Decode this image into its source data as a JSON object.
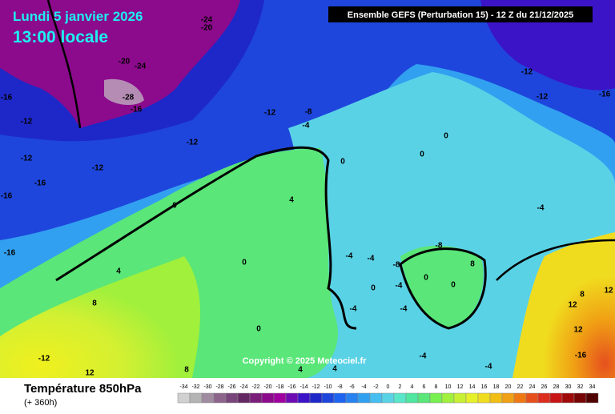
{
  "header": {
    "date": "Lundi 5 janvier 2026",
    "time": "13:00 locale",
    "run": "Ensemble GEFS  (Perturbation 15)  -  12 Z du 21/12/2025"
  },
  "map": {
    "copyright": "Copyright © 2025 Meteociel.fr",
    "contour_labels": [
      "-24",
      "-20",
      "-20",
      "-24",
      "-28",
      "-16",
      "-16",
      "-12",
      "-12",
      "-16",
      "-12",
      "-12",
      "-12",
      "-8",
      "-4",
      "-12",
      "-12",
      "-16",
      "-16",
      "-16",
      "0",
      "4",
      "8",
      "-12",
      "12",
      "8",
      "0",
      "4",
      "0",
      "0",
      "-4",
      "-8",
      "-8",
      "-4",
      "-4",
      "8",
      "0",
      "0",
      "-4",
      "0",
      "-4",
      "-4",
      "12",
      "8",
      "12",
      "12",
      "-16",
      "-4",
      "-4",
      "4",
      "4",
      "0",
      "0"
    ]
  },
  "footer": {
    "title": "Température 850hPa",
    "lead": "(+ 360h)"
  },
  "legend": {
    "ticks": [
      -34,
      -32,
      -30,
      -28,
      -26,
      -24,
      -22,
      -20,
      -18,
      -16,
      -14,
      -12,
      -10,
      -8,
      -6,
      -4,
      -2,
      0,
      2,
      4,
      6,
      8,
      10,
      12,
      14,
      16,
      18,
      20,
      22,
      24,
      26,
      28,
      30,
      32,
      34
    ],
    "colors": [
      "#d0d0d0",
      "#b4b4b4",
      "#a08ca0",
      "#8c648c",
      "#78467a",
      "#642864",
      "#7a1e7a",
      "#8c0a8c",
      "#a000a0",
      "#6e0cb4",
      "#3c14c8",
      "#1e28c8",
      "#1e46dc",
      "#1e64f0",
      "#2882f0",
      "#32a0f0",
      "#46bef0",
      "#5ad2e6",
      "#5ae6c8",
      "#50e6a0",
      "#5ae678",
      "#78f050",
      "#a0f03c",
      "#c8f032",
      "#e6f028",
      "#f0dc1e",
      "#f0be14",
      "#f0a014",
      "#f07814",
      "#e6501e",
      "#dc2d1e",
      "#c81414",
      "#a00a0a",
      "#780505",
      "#500000"
    ]
  }
}
